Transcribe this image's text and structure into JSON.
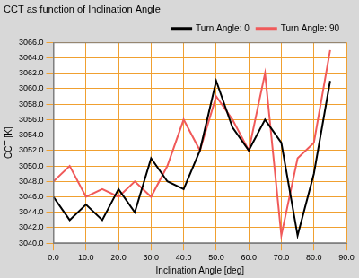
{
  "chart_data": {
    "type": "line",
    "title": "CCT as function of Inclination Angle",
    "x_label": "Inclination Angle [deg]",
    "y_label": "CCT [K]",
    "x": [
      0,
      5,
      10,
      15,
      20,
      25,
      30,
      35,
      40,
      45,
      50,
      55,
      60,
      65,
      70,
      75,
      80,
      85
    ],
    "series": [
      {
        "name": "Turn Angle: 0",
        "color": "#000000",
        "values": [
          3046,
          3043,
          3045,
          3043,
          3047,
          3044,
          3051,
          3048,
          3047,
          3052,
          3061,
          3055,
          3052,
          3056,
          3053,
          3041,
          3049,
          3061
        ]
      },
      {
        "name": "Turn Angle: 90",
        "color": "#f05a5a",
        "values": [
          3048,
          3050,
          3046,
          3047,
          3046,
          3048,
          3046,
          3050,
          3056,
          3052,
          3059,
          3056,
          3052,
          3062,
          3041,
          3051,
          3053,
          3065
        ]
      }
    ],
    "xlim": [
      0,
      90
    ],
    "xticks": [
      {
        "value": 0,
        "label": "0.0"
      },
      {
        "value": 10,
        "label": "10.0"
      },
      {
        "value": 20,
        "label": "20.0"
      },
      {
        "value": 30,
        "label": "30.0"
      },
      {
        "value": 40,
        "label": "40.0"
      },
      {
        "value": 50,
        "label": "50.0"
      },
      {
        "value": 60,
        "label": "60.0"
      },
      {
        "value": 70,
        "label": "70.0"
      },
      {
        "value": 80,
        "label": "80.0"
      },
      {
        "value": 90,
        "label": "90.0"
      }
    ],
    "ylim": [
      3040,
      3066
    ],
    "yticks": [
      {
        "value": 3040,
        "label": "3040.0"
      },
      {
        "value": 3042,
        "label": "3042.0"
      },
      {
        "value": 3044,
        "label": "3044.0"
      },
      {
        "value": 3046,
        "label": "3046.0"
      },
      {
        "value": 3048,
        "label": "3048.0"
      },
      {
        "value": 3050,
        "label": "3050.0"
      },
      {
        "value": 3052,
        "label": "3052.0"
      },
      {
        "value": 3054,
        "label": "3054.0"
      },
      {
        "value": 3056,
        "label": "3056.0"
      },
      {
        "value": 3058,
        "label": "3058.0"
      },
      {
        "value": 3060,
        "label": "3060.0"
      },
      {
        "value": 3062,
        "label": "3062.0"
      },
      {
        "value": 3064,
        "label": "3064.0"
      },
      {
        "value": 3066,
        "label": "3066.0"
      }
    ],
    "grid": true,
    "legend": "top-right"
  }
}
